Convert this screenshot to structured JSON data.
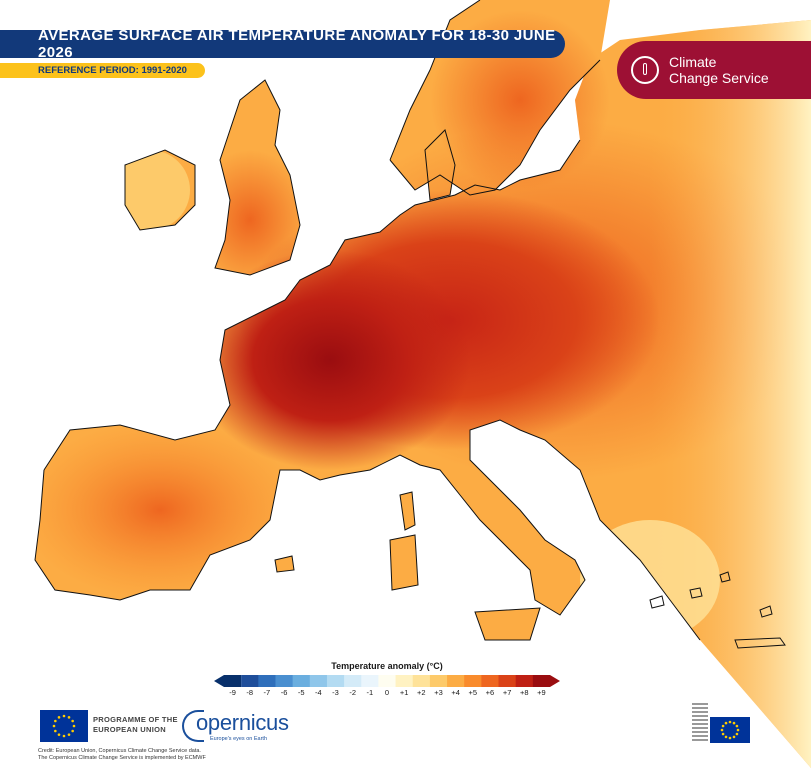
{
  "title": "AVERAGE SURFACE AIR TEMPERATURE ANOMALY FOR 18-30 JUNE 2026",
  "reference_period": "REFERENCE PERIOD: 1991-2020",
  "service_badge": {
    "line1": "Climate",
    "line2": "Change Service",
    "icon": "thermometer-icon"
  },
  "legend": {
    "title": "Temperature anomaly (°C)",
    "ticks": [
      "-9",
      "-8",
      "-7",
      "-6",
      "-5",
      "-4",
      "-3",
      "-2",
      "-1",
      "0",
      "+1",
      "+2",
      "+3",
      "+4",
      "+5",
      "+6",
      "+7",
      "+8",
      "+9"
    ],
    "colors": [
      "#08306b",
      "#1f4e9a",
      "#2f6fbb",
      "#4a8fd0",
      "#6aaedf",
      "#8fc6ea",
      "#b3dbf2",
      "#d4ebf8",
      "#eaf5fc",
      "#fefdf0",
      "#fff2c2",
      "#fee299",
      "#fdca6a",
      "#fcac44",
      "#f98b2c",
      "#ee6620",
      "#da4218",
      "#bf2014",
      "#9a0d10"
    ]
  },
  "footer": {
    "programme_line1": "PROGRAMME OF THE",
    "programme_line2": "EUROPEAN UNION",
    "copernicus_name": "opernicus",
    "copernicus_tagline": "Europe's eyes on Earth",
    "credit_line1": "Credit: European Union, Copernicus Climate Change Service data.",
    "credit_line2": "The Copernicus Climate Change Service is implemented by ECMWF"
  },
  "colors": {
    "sea": "#ffffff",
    "title_bg": "#12397a",
    "reference_bg": "#fcc21b",
    "badge_bg": "#9d1034"
  }
}
